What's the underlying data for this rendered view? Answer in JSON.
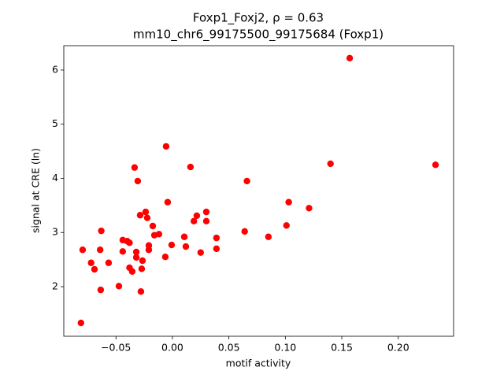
{
  "chart_data": {
    "type": "scatter",
    "title": "Foxp1_Foxj2, ρ = 0.63",
    "subtitle": "mm10_chr6_99175500_99175684 (Foxp1)",
    "xlabel": "motif activity",
    "ylabel": "signal at CRE (ln)",
    "color": "#ff0000",
    "xlim": [
      -0.0962,
      0.249
    ],
    "ylim": [
      1.084,
      6.45
    ],
    "xticks": [
      {
        "value": -0.05,
        "label": "−0.05"
      },
      {
        "value": 0,
        "label": "0.00"
      },
      {
        "value": 0.05,
        "label": "0.05"
      },
      {
        "value": 0.1,
        "label": "0.10"
      },
      {
        "value": 0.15,
        "label": "0.15"
      },
      {
        "value": 0.2,
        "label": "0.20"
      }
    ],
    "yticks": [
      2,
      3,
      4,
      5,
      6
    ],
    "x": [
      -0.081,
      -0.0795,
      -0.072,
      -0.069,
      -0.064,
      -0.0635,
      -0.063,
      -0.0565,
      -0.0474,
      -0.044,
      -0.044,
      -0.04,
      -0.038,
      -0.038,
      -0.0356,
      -0.0335,
      -0.032,
      -0.032,
      -0.0307,
      -0.0286,
      -0.0279,
      -0.0272,
      -0.0265,
      -0.0237,
      -0.0223,
      -0.0209,
      -0.0209,
      -0.0174,
      -0.016,
      -0.0119,
      -0.0063,
      -0.0056,
      -0.0042,
      -0.0007,
      0.0105,
      0.0119,
      0.016,
      0.019,
      0.0216,
      0.025,
      0.03,
      0.03,
      0.039,
      0.039,
      0.064,
      0.066,
      0.085,
      0.101,
      0.103,
      0.121,
      0.14,
      0.157,
      0.233
    ],
    "y": [
      1.33,
      2.68,
      2.44,
      2.32,
      2.68,
      1.94,
      3.03,
      2.44,
      2.01,
      2.86,
      2.65,
      2.84,
      2.81,
      2.35,
      2.28,
      4.2,
      2.64,
      2.54,
      3.95,
      3.32,
      1.91,
      2.33,
      2.48,
      3.38,
      3.27,
      2.76,
      2.68,
      3.12,
      2.95,
      2.97,
      2.55,
      4.59,
      3.56,
      2.77,
      2.92,
      2.74,
      4.21,
      3.21,
      3.31,
      2.63,
      3.38,
      3.21,
      2.9,
      2.7,
      3.02,
      3.95,
      2.92,
      3.13,
      3.56,
      3.45,
      4.27,
      6.22,
      4.25
    ]
  }
}
